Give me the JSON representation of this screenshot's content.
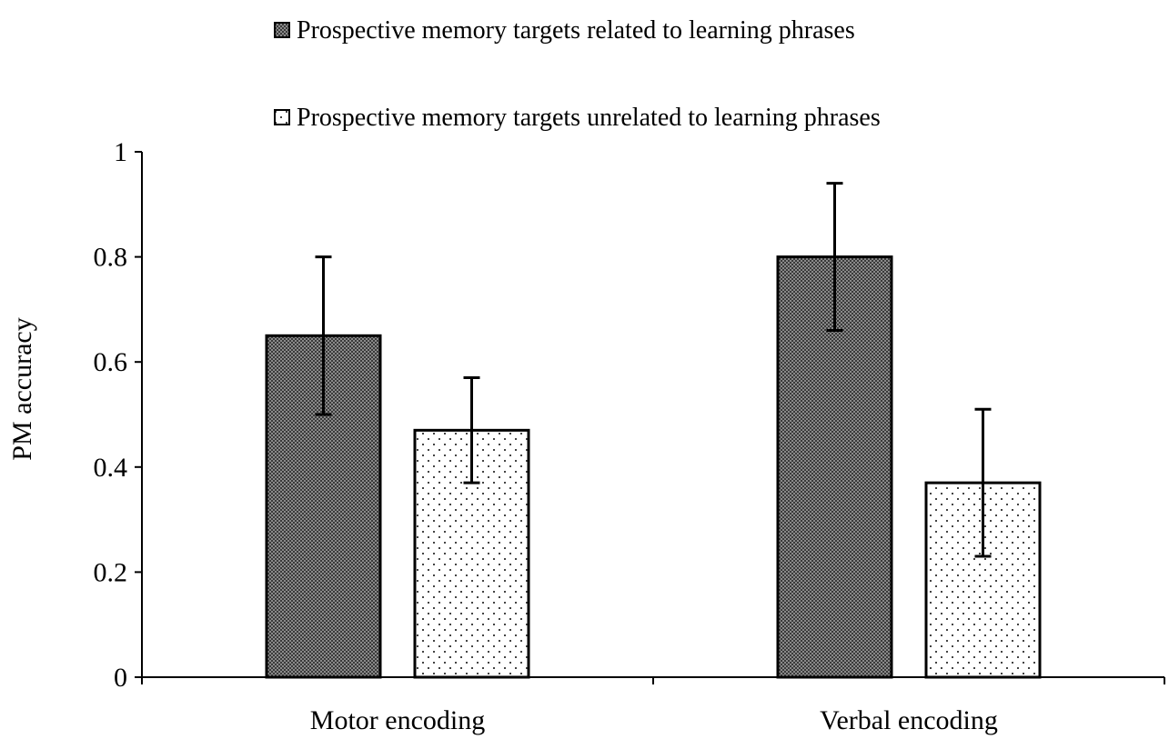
{
  "chart_data": {
    "type": "bar",
    "title": "",
    "xlabel": "",
    "ylabel": "PM accuracy",
    "ylim": [
      0,
      1
    ],
    "yticks": [
      "0",
      "0.2",
      "0.4",
      "0.6",
      "0.8",
      "1"
    ],
    "categories": [
      "Motor encoding",
      "Verbal encoding"
    ],
    "legend_position": "top",
    "grid": false,
    "series": [
      {
        "name": "Prospective memory targets related to learning phrases",
        "pattern": "dense-crosshatch",
        "values": [
          0.65,
          0.8
        ],
        "error_low": [
          0.5,
          0.66
        ],
        "error_high": [
          0.8,
          0.94
        ]
      },
      {
        "name": "Prospective memory targets unrelated to learning phrases",
        "pattern": "sparse-dots",
        "values": [
          0.47,
          0.37
        ],
        "error_low": [
          0.37,
          0.23
        ],
        "error_high": [
          0.57,
          0.51
        ]
      }
    ]
  }
}
